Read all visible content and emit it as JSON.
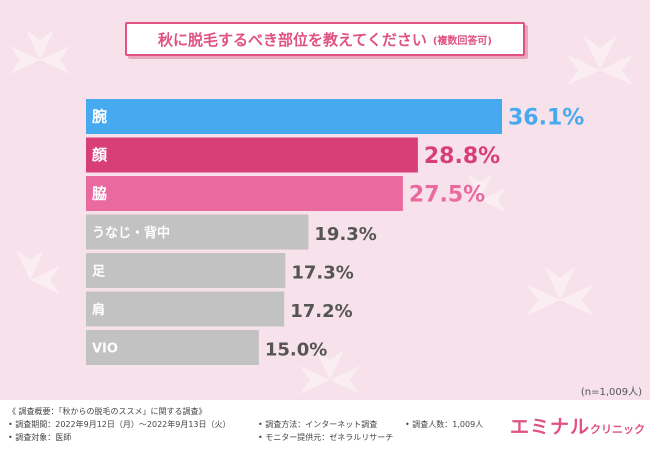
{
  "title": "秋に脱毛するべき部位を教えてください",
  "title_note": "(複数回答可)",
  "n_note": "(n=1,009人)",
  "footer": {
    "summary": "《 調査概要：「秋からの脱毛のススメ」に関する調査》",
    "period": "• 調査期間：2022年9月12日（月）～2022年9月13日（火）",
    "target": "• 調査対象：医師",
    "method": "• 調査方法：インターネット調査",
    "provider": "• モニター提供元：ゼネラルリサーチ",
    "respondents": "• 調査人数：1,009人"
  },
  "logo": {
    "main": "エミナル",
    "sub": "クリニック"
  },
  "colors": {
    "accent": "#e0527f",
    "blue": "#47a9f0",
    "dark_pink": "#d83f76",
    "pink": "#ea6aa0",
    "gray": "#c2c2c2"
  },
  "chart_data": {
    "type": "bar",
    "orientation": "horizontal",
    "categories": [
      "腕",
      "顔",
      "脇",
      "うなじ・背中",
      "足",
      "肩",
      "VIO"
    ],
    "values": [
      36.1,
      28.8,
      27.5,
      19.3,
      17.3,
      17.2,
      15.0
    ],
    "value_labels": [
      "36.1%",
      "28.8%",
      "27.5%",
      "19.3%",
      "17.3%",
      "17.2%",
      "15.0%"
    ],
    "bar_colors": [
      "#47a9f0",
      "#d83f76",
      "#ea6aa0",
      "#c2c2c2",
      "#c2c2c2",
      "#c2c2c2",
      "#c2c2c2"
    ],
    "label_colors": [
      "#47a9f0",
      "#d83f76",
      "#ea6aa0",
      "#555555",
      "#555555",
      "#555555",
      "#555555"
    ],
    "unit": "%",
    "xlim": [
      0,
      36.1
    ]
  }
}
